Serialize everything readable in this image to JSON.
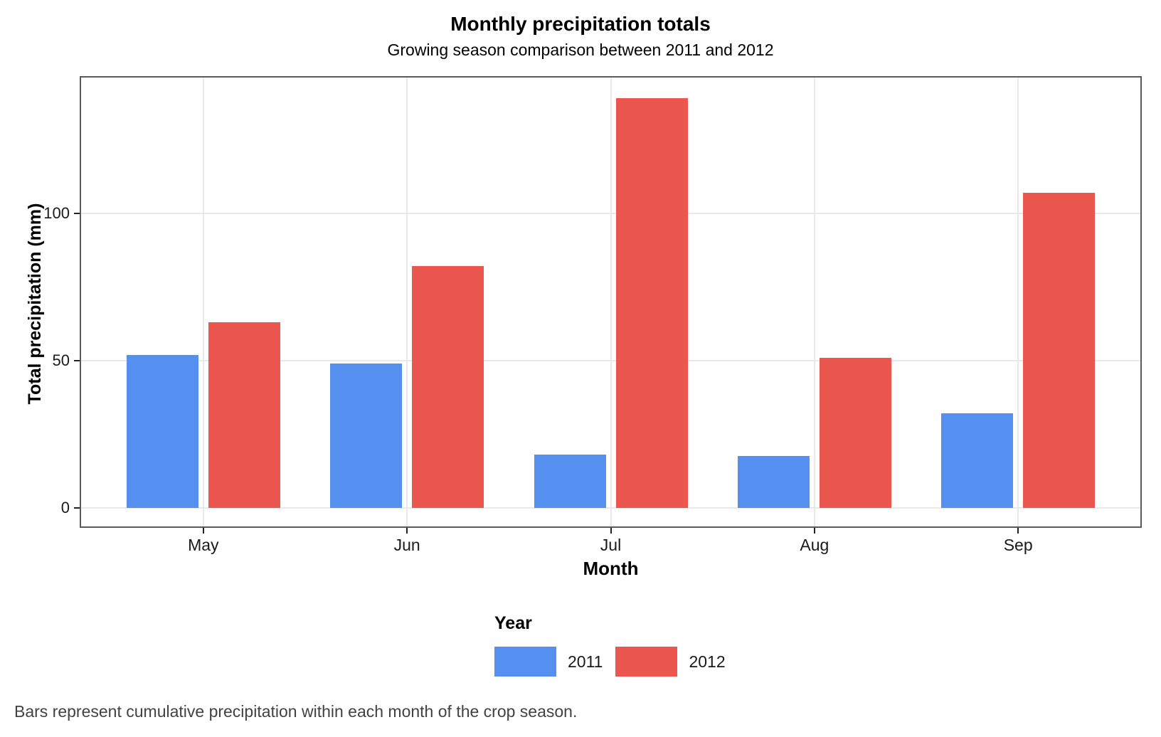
{
  "title": "Monthly precipitation totals",
  "subtitle": "Growing season comparison between 2011 and 2012",
  "caption": "Bars represent cumulative precipitation within each month of the crop season.",
  "chart_data": {
    "type": "bar",
    "title": "Monthly precipitation totals",
    "subtitle": "Growing season comparison between 2011 and 2012",
    "xlabel": "Month",
    "ylabel": "Total precipitation (mm)",
    "categories": [
      "May",
      "Jun",
      "Jul",
      "Aug",
      "Sep"
    ],
    "series": [
      {
        "name": "2011",
        "color": "#5590F0",
        "values": [
          52,
          49,
          18,
          17.5,
          32
        ]
      },
      {
        "name": "2012",
        "color": "#EB564E",
        "values": [
          63,
          82,
          139,
          51,
          107
        ]
      }
    ],
    "yticks": [
      0,
      50,
      100
    ],
    "ylim": [
      0,
      146
    ],
    "legend_title": "Year",
    "legend_position": "bottom",
    "grid": "major-horizontal-and-category-vertical",
    "caption": "Bars represent cumulative precipitation within each month of the crop season."
  }
}
